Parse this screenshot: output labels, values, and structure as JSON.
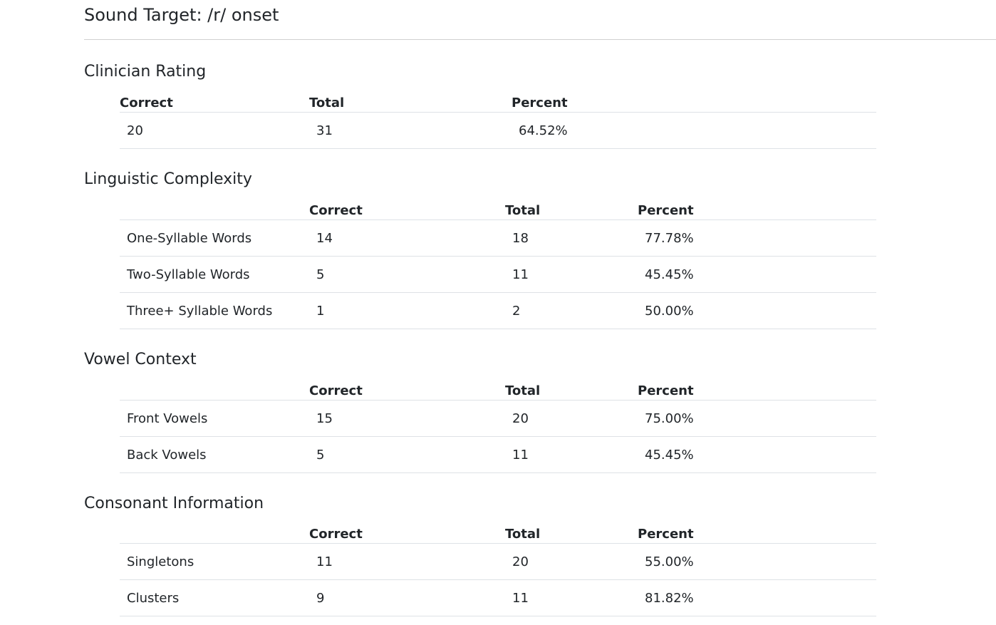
{
  "page_title": "Sound Target: /r/ onset",
  "clinician_rating": {
    "title": "Clinician Rating",
    "headers": [
      "Correct",
      "Total",
      "Percent"
    ],
    "row": [
      "20",
      "31",
      "64.52%"
    ]
  },
  "linguistic_complexity": {
    "title": "Linguistic Complexity",
    "headers": [
      "",
      "Correct",
      "Total",
      "Percent"
    ],
    "rows": [
      [
        "One-Syllable Words",
        "14",
        "18",
        "77.78%"
      ],
      [
        "Two-Syllable Words",
        "5",
        "11",
        "45.45%"
      ],
      [
        "Three+ Syllable Words",
        "1",
        "2",
        "50.00%"
      ]
    ]
  },
  "vowel_context": {
    "title": "Vowel Context",
    "headers": [
      "",
      "Correct",
      "Total",
      "Percent"
    ],
    "rows": [
      [
        "Front Vowels",
        "15",
        "20",
        "75.00%"
      ],
      [
        "Back Vowels",
        "5",
        "11",
        "45.45%"
      ]
    ]
  },
  "consonant_information": {
    "title": "Consonant Information",
    "headers": [
      "",
      "Correct",
      "Total",
      "Percent"
    ],
    "rows": [
      [
        "Singletons",
        "11",
        "20",
        "55.00%"
      ],
      [
        "Clusters",
        "9",
        "11",
        "81.82%"
      ]
    ]
  }
}
